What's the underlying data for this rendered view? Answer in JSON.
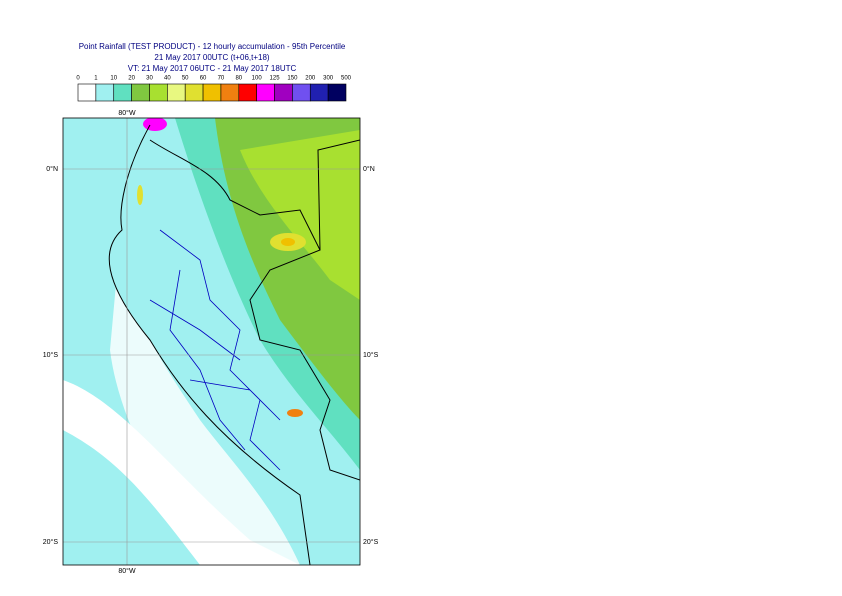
{
  "header": {
    "title": "Point Rainfall (TEST PRODUCT) - 12 hourly accumulation - 95th Percentile",
    "subtitle": "21 May 2017 00UTC (t+06,t+18)",
    "validity": "VT: 21 May 2017 06UTC - 21 May 2017 18UTC"
  },
  "legend": {
    "values": [
      0,
      1,
      10,
      20,
      30,
      40,
      50,
      60,
      70,
      80,
      100,
      125,
      150,
      200,
      300,
      500
    ],
    "colors": [
      "#ffffff",
      "#a0f0f0",
      "#60e0c0",
      "#80c840",
      "#a8e030",
      "#e8f880",
      "#e0e030",
      "#f0c000",
      "#f08010",
      "#ff0000",
      "#ff00ff",
      "#a000c0",
      "#7050f0",
      "#2020b0",
      "#000060"
    ]
  },
  "map": {
    "lat_labels": [
      "0°N",
      "10°S",
      "20°S"
    ],
    "lon_labels": [
      "80°W"
    ]
  }
}
